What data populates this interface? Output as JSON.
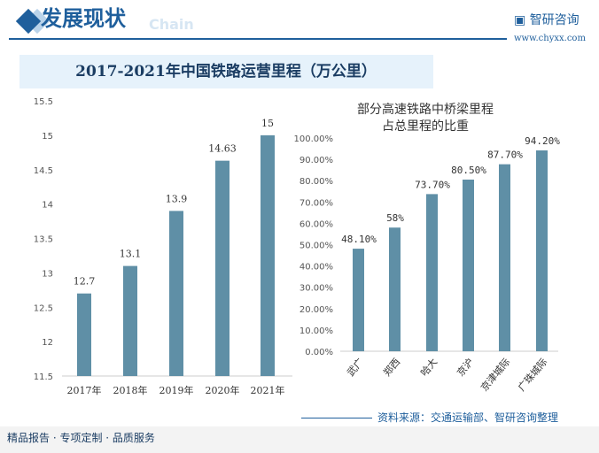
{
  "header": {
    "title": "发展现状",
    "watermark": "Chain",
    "logo": "智研咨询",
    "url": "www.chyxx.com"
  },
  "main_title": "2017-2021年中国铁路运营里程（万公里）",
  "source": "资料来源：交通运输部、智研咨询整理",
  "footer": "精品报告 · 专项定制 · 品质服务",
  "colors": {
    "bar": "#5f8fa6",
    "accent": "#1f5f9c"
  },
  "chart_data": [
    {
      "type": "bar",
      "categories": [
        "2017年",
        "2018年",
        "2019年",
        "2020年",
        "2021年"
      ],
      "values": [
        12.7,
        13.1,
        13.9,
        14.63,
        15
      ],
      "data_labels": [
        "12.7",
        "13.1",
        "13.9",
        "14.63",
        "15"
      ],
      "ylim": [
        11.5,
        15.5
      ],
      "yticks": [
        "11.5",
        "12",
        "12.5",
        "13",
        "13.5",
        "14",
        "14.5",
        "15",
        "15.5"
      ],
      "grid": false
    },
    {
      "type": "bar",
      "title": "部分高速铁路中桥梁里程占总里程的比重",
      "categories": [
        "武广",
        "郑西",
        "哈大",
        "京沪",
        "京津城际",
        "广珠城际"
      ],
      "values": [
        48.1,
        58,
        73.7,
        80.5,
        87.7,
        94.2
      ],
      "data_labels": [
        "48.10%",
        "58%",
        "73.70%",
        "80.50%",
        "87.70%",
        "94.20%"
      ],
      "ylim": [
        0,
        100
      ],
      "yticks": [
        "0.00%",
        "10.00%",
        "20.00%",
        "30.00%",
        "40.00%",
        "50.00%",
        "60.00%",
        "70.00%",
        "80.00%",
        "90.00%",
        "100.00%"
      ],
      "grid": false
    }
  ]
}
